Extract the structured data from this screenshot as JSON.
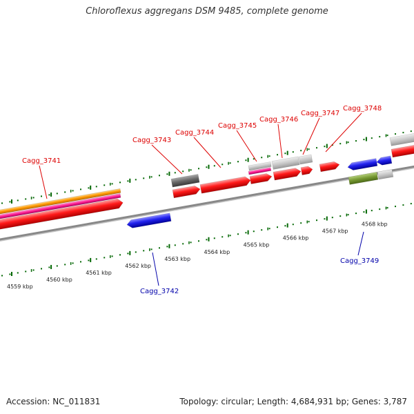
{
  "title": "Chloroflexus aggregans DSM 9485, complete genome",
  "footer": {
    "accession": "Accession: NC_011831",
    "summary": "Topology: circular; Length: 4,684,931 bp; Genes: 3,787"
  },
  "colors": {
    "forward_label": "#dd0000",
    "reverse_label": "#0000aa",
    "backbone": "#888888",
    "tick": "#006600"
  },
  "ticks": [
    {
      "label": "4559 kbp"
    },
    {
      "label": "4560 kbp"
    },
    {
      "label": "4561 kbp"
    },
    {
      "label": "4562 kbp"
    },
    {
      "label": "4563 kbp"
    },
    {
      "label": "4564 kbp"
    },
    {
      "label": "4565 kbp"
    },
    {
      "label": "4566 kbp"
    },
    {
      "label": "4567 kbp"
    },
    {
      "label": "4568 kbp"
    }
  ],
  "gene_labels": [
    {
      "text": "Cagg_3741",
      "strand": "forward"
    },
    {
      "text": "Cagg_3742",
      "strand": "reverse"
    },
    {
      "text": "Cagg_3743",
      "strand": "forward"
    },
    {
      "text": "Cagg_3744",
      "strand": "forward"
    },
    {
      "text": "Cagg_3745",
      "strand": "forward"
    },
    {
      "text": "Cagg_3746",
      "strand": "forward"
    },
    {
      "text": "Cagg_3747",
      "strand": "forward"
    },
    {
      "text": "Cagg_3748",
      "strand": "forward"
    },
    {
      "text": "Cagg_3749",
      "strand": "reverse"
    }
  ]
}
